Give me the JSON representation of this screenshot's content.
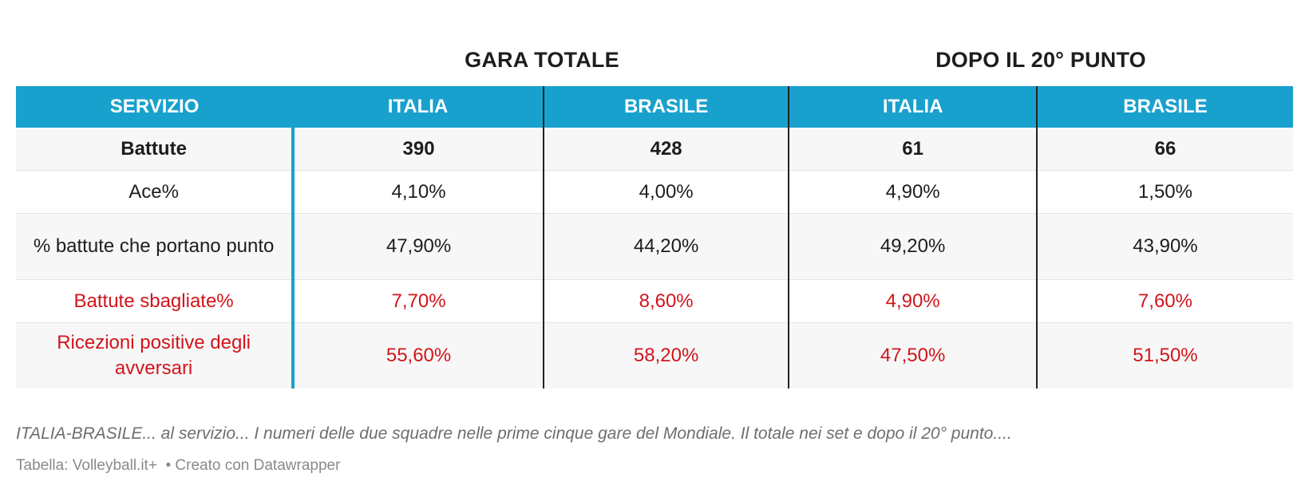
{
  "chart_data": {
    "type": "table",
    "group_headers": [
      "GARA TOTALE",
      "DOPO IL 20° PUNTO"
    ],
    "columns": [
      "SERVIZIO",
      "ITALIA",
      "BRASILE",
      "ITALIA",
      "BRASILE"
    ],
    "rows": [
      {
        "style": "bold",
        "cells": [
          "Battute",
          "390",
          "428",
          "61",
          "66"
        ]
      },
      {
        "style": "normal",
        "cells": [
          "Ace%",
          "4,10%",
          "4,00%",
          "4,90%",
          "1,50%"
        ]
      },
      {
        "style": "normal",
        "cells": [
          "% battute che portano punto",
          "47,90%",
          "44,20%",
          "49,20%",
          "43,90%"
        ]
      },
      {
        "style": "red",
        "cells": [
          "Battute sbagliate%",
          "7,70%",
          "8,60%",
          "4,90%",
          "7,60%"
        ]
      },
      {
        "style": "red",
        "cells": [
          "Ricezioni positive degli avversari",
          "55,60%",
          "58,20%",
          "47,50%",
          "51,50%"
        ]
      }
    ],
    "colors": {
      "header_bg": "#18a1cd",
      "header_text": "#ffffff",
      "highlight_text": "#d0151b"
    }
  },
  "notes": "ITALIA-BRASILE... al servizio... I numeri delle due squadre nelle prime cinque gare del Mondiale. Il totale nei set e dopo il 20° punto....",
  "footer": {
    "source": "Tabella: Volleyball.it+",
    "credit": "• Creato con Datawrapper"
  }
}
